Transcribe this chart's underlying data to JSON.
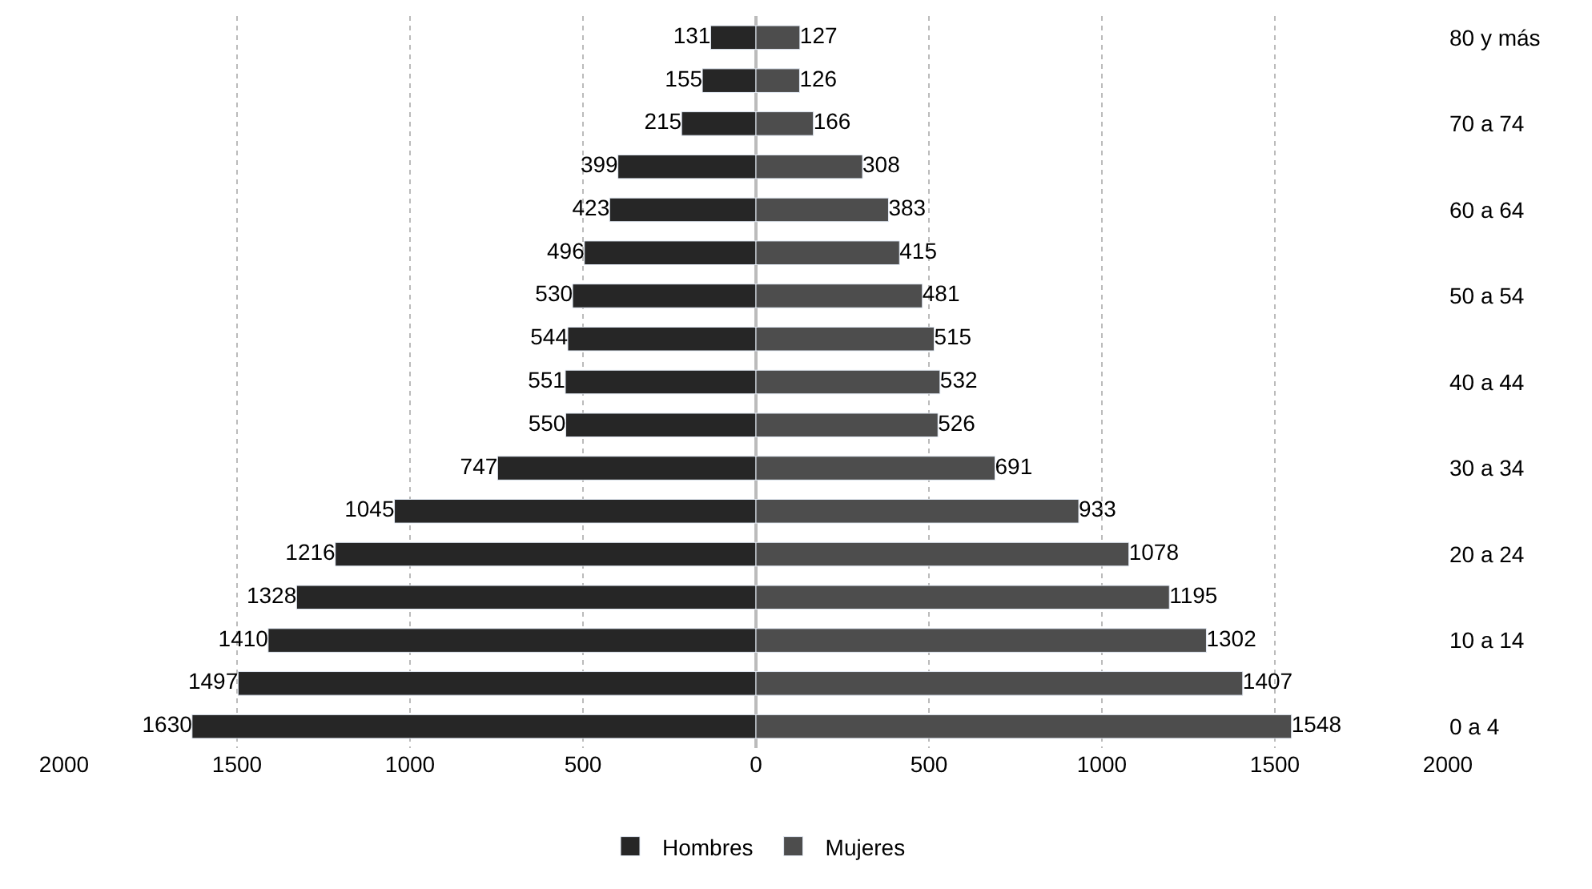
{
  "chart_data": {
    "type": "bar",
    "orientation": "horizontal",
    "categories": [
      "80 y más",
      null,
      "70 a 74",
      null,
      "60 a 64",
      null,
      "50 a 54",
      null,
      "40 a 44",
      null,
      "30 a 34",
      null,
      "20 a 24",
      null,
      "10 a 14",
      null,
      "0 a 4"
    ],
    "series": [
      {
        "name": "Hombres",
        "color": "#262626",
        "values": [
          131,
          155,
          215,
          399,
          423,
          496,
          530,
          544,
          551,
          550,
          747,
          1045,
          1216,
          1328,
          1410,
          1497,
          1630
        ],
        "base": [
          -131,
          -155,
          -215,
          -399,
          -423,
          -496,
          -530,
          -544,
          -551,
          -550,
          -747,
          -1045,
          -1216,
          -1328,
          -1410,
          -1497,
          -1630
        ]
      },
      {
        "name": "Mujeres",
        "color": "#4d4d4d",
        "values": [
          127,
          126,
          166,
          308,
          383,
          415,
          481,
          515,
          532,
          526,
          691,
          933,
          1078,
          1195,
          1302,
          1407,
          1548
        ]
      }
    ],
    "xlim": [
      -2000,
      2000
    ],
    "xticks": [
      {
        "value": -2000,
        "label": "2000"
      },
      {
        "value": -1500,
        "label": "1500"
      },
      {
        "value": -1000,
        "label": "1000"
      },
      {
        "value": -500,
        "label": "500"
      },
      0,
      500,
      1000,
      1500,
      2000
    ],
    "data_labels": true,
    "grid": "x",
    "legend": "bottom"
  }
}
